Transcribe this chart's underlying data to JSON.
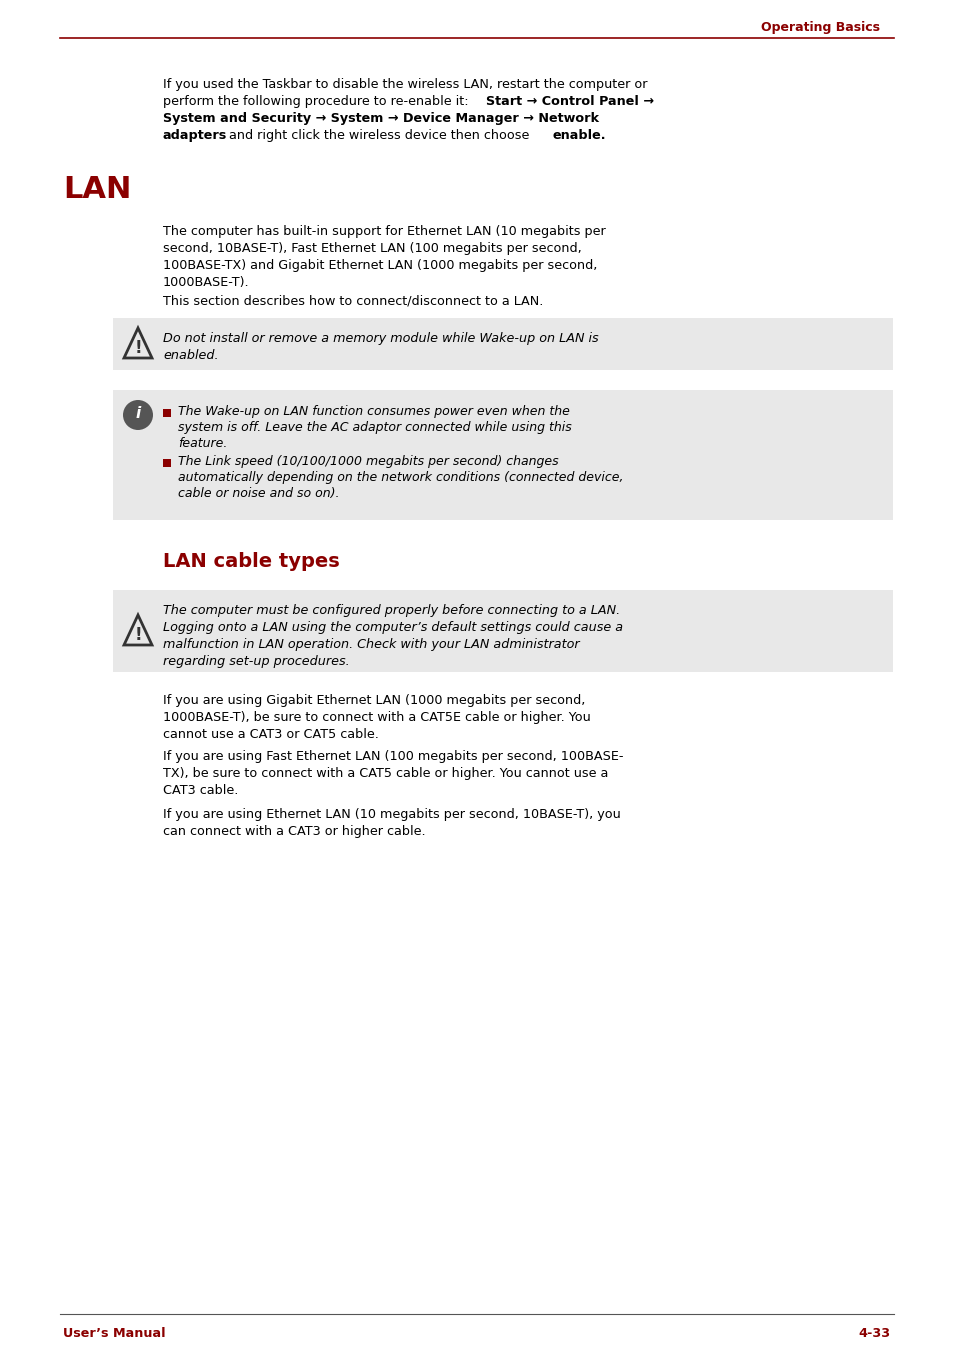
{
  "bg_color": "#ffffff",
  "header_text": "Operating Basics",
  "header_color": "#8b0000",
  "header_line_color": "#8b0000",
  "footer_left": "User’s Manual",
  "footer_right": "4-33",
  "footer_color": "#8b0000",
  "body_text_color": "#000000",
  "red_color": "#8b0000",
  "intro_paragraph": "If you used the Taskbar to disable the wireless LAN, restart the computer or\nperform the following procedure to re-enable it: Start → Control Panel →\nSystem and Security → System → Device Manager → Network\nadapters and right click the wireless device then choose enable.",
  "lan_heading": "LAN",
  "lan_para1": "The computer has built-in support for Ethernet LAN (10 megabits per\nsecond, 10BASE-T), Fast Ethernet LAN (100 megabits per second,\n100BASE-TX) and Gigabit Ethernet LAN (1000 megabits per second,\n1000BASE-T).",
  "lan_para2": "This section describes how to connect/disconnect to a LAN.",
  "caution1_text": "Do not install or remove a memory module while Wake-up on LAN is\nenabled.",
  "info_bullets": [
    "The Wake-up on LAN function consumes power even when the\nsystem is off. Leave the AC adaptor connected while using this\nfeature.",
    "The Link speed (10/100/1000 megabits per second) changes\nautomatically depending on the network conditions (connected device,\ncable or noise and so on)."
  ],
  "lan_cable_heading": "LAN cable types",
  "caution2_text": "The computer must be configured properly before connecting to a LAN.\nLogging onto a LAN using the computer’s default settings could cause a\nmalfunction in LAN operation. Check with your LAN administrator\nregarding set-up procedures.",
  "cable_para1": "If you are using Gigabit Ethernet LAN (1000 megabits per second,\n1000BASE-T), be sure to connect with a CAT5E cable or higher. You\ncannot use a CAT3 or CAT5 cable.",
  "cable_para2": "If you are using Fast Ethernet LAN (100 megabits per second, 100BASE-\nTX), be sure to connect with a CAT5 cable or higher. You cannot use a\nCAT3 cable.",
  "cable_para3": "If you are using Ethernet LAN (10 megabits per second, 10BASE-T), you\ncan connect with a CAT3 or higher cable."
}
